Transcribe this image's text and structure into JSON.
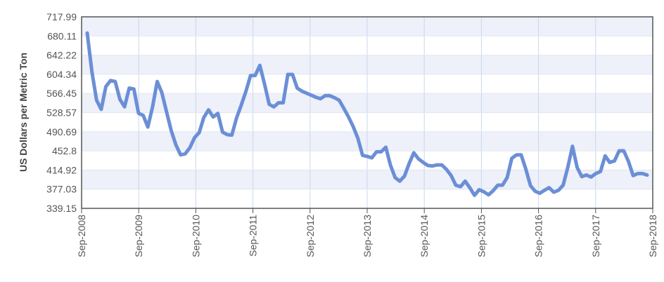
{
  "chart_data": {
    "type": "line",
    "title": "",
    "xlabel": "",
    "ylabel": "US Dollars per Metric Ton",
    "ylim": [
      339.15,
      717.99
    ],
    "yticks": [
      "339.15",
      "377.03",
      "414.92",
      "452.8",
      "490.69",
      "528.57",
      "566.45",
      "604.34",
      "642.22",
      "680.11",
      "717.99"
    ],
    "xlim": [
      "Sep-2008",
      "Sep-2018"
    ],
    "xticks": [
      "Sep-2008",
      "Sep-2009",
      "Sep-2010",
      "Sep-2011",
      "Sep-2012",
      "Sep-2013",
      "Sep-2014",
      "Sep-2015",
      "Sep-2016",
      "Sep-2017",
      "Sep-2018"
    ],
    "grid": true,
    "legend": "none",
    "colors": {
      "line": "#6b8fd6",
      "band": "#eef0fa",
      "grid": "#c8d8ec",
      "axis": "#555555"
    },
    "series": [
      {
        "x": [
          "Sep-2008",
          "Oct-2008",
          "Nov-2008",
          "Dec-2008",
          "Jan-2009",
          "Feb-2009",
          "Mar-2009",
          "Apr-2009",
          "May-2009",
          "Jun-2009",
          "Jul-2009",
          "Aug-2009",
          "Sep-2009",
          "Oct-2009",
          "Nov-2009",
          "Dec-2009",
          "Jan-2010",
          "Feb-2010",
          "Mar-2010",
          "Apr-2010",
          "May-2010",
          "Jun-2010",
          "Jul-2010",
          "Aug-2010",
          "Sep-2010",
          "Oct-2010",
          "Nov-2010",
          "Dec-2010",
          "Jan-2011",
          "Feb-2011",
          "Mar-2011",
          "Apr-2011",
          "May-2011",
          "Jun-2011",
          "Jul-2011",
          "Aug-2011",
          "Sep-2011",
          "Oct-2011",
          "Nov-2011",
          "Dec-2011",
          "Jan-2012",
          "Feb-2012",
          "Mar-2012",
          "Apr-2012",
          "May-2012",
          "Jun-2012",
          "Jul-2012",
          "Aug-2012",
          "Sep-2012",
          "Oct-2012",
          "Nov-2012",
          "Dec-2012",
          "Jan-2013",
          "Feb-2013",
          "Mar-2013",
          "Apr-2013",
          "May-2013",
          "Jun-2013",
          "Jul-2013",
          "Aug-2013",
          "Sep-2013",
          "Oct-2013",
          "Nov-2013",
          "Dec-2013",
          "Jan-2014",
          "Feb-2014",
          "Mar-2014",
          "Apr-2014",
          "May-2014",
          "Jun-2014",
          "Jul-2014",
          "Aug-2014",
          "Sep-2014",
          "Oct-2014",
          "Nov-2014",
          "Dec-2014",
          "Jan-2015",
          "Feb-2015",
          "Mar-2015",
          "Apr-2015",
          "May-2015",
          "Jun-2015",
          "Jul-2015",
          "Aug-2015",
          "Sep-2015",
          "Oct-2015",
          "Nov-2015",
          "Dec-2015",
          "Jan-2016",
          "Feb-2016",
          "Mar-2016",
          "Apr-2016",
          "May-2016",
          "Jun-2016",
          "Jul-2016",
          "Aug-2016",
          "Sep-2016",
          "Oct-2016",
          "Nov-2016",
          "Dec-2016",
          "Jan-2017",
          "Feb-2017",
          "Mar-2017",
          "Apr-2017",
          "May-2017",
          "Jun-2017",
          "Jul-2017",
          "Aug-2017",
          "Sep-2017",
          "Oct-2017",
          "Nov-2017",
          "Dec-2017",
          "Jan-2018",
          "Feb-2018",
          "Mar-2018",
          "Apr-2018",
          "May-2018",
          "Jun-2018",
          "Jul-2018",
          "Aug-2018",
          "Sep-2018"
        ],
        "values": [
          686,
          610,
          553,
          535,
          580,
          592,
          590,
          555,
          540,
          577,
          575,
          527,
          523,
          500,
          540,
          590,
          568,
          530,
          493,
          465,
          445,
          447,
          459,
          479,
          489,
          519,
          534,
          520,
          527,
          490,
          485,
          484,
          518,
          543,
          570,
          602,
          602,
          622,
          585,
          545,
          540,
          548,
          548,
          604,
          604,
          577,
          571,
          567,
          563,
          559,
          556,
          562,
          562,
          558,
          553,
          537,
          520,
          501,
          478,
          444,
          442,
          439,
          451,
          451,
          460,
          424,
          400,
          393,
          403,
          428,
          449,
          437,
          430,
          424,
          423,
          425,
          425,
          416,
          404,
          385,
          382,
          393,
          380,
          365,
          376,
          372,
          366,
          374,
          385,
          385,
          400,
          438,
          445,
          445,
          417,
          384,
          373,
          369,
          375,
          380,
          371,
          375,
          385,
          420,
          462,
          420,
          402,
          405,
          401,
          408,
          412,
          443,
          430,
          433,
          453,
          453,
          432,
          404,
          408,
          408,
          405
        ]
      }
    ]
  }
}
